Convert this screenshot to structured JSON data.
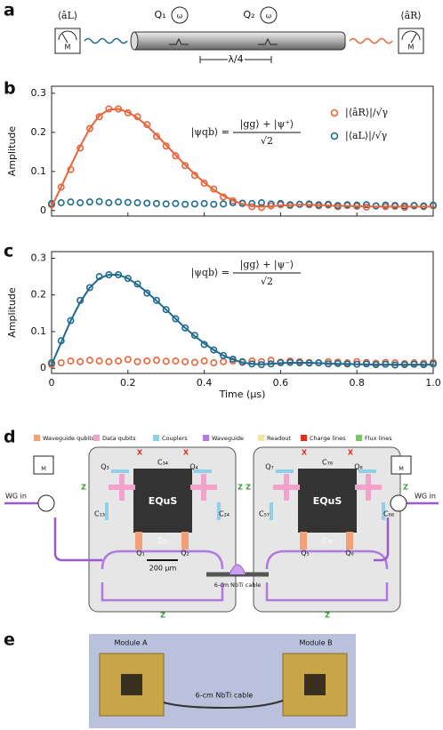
{
  "chart_data": [
    {
      "type": "scatter",
      "panel": "b",
      "ylabel": "Amplitude",
      "x": [
        0,
        0.025,
        0.05,
        0.075,
        0.1,
        0.125,
        0.15,
        0.175,
        0.2,
        0.225,
        0.25,
        0.275,
        0.3,
        0.325,
        0.35,
        0.375,
        0.4,
        0.425,
        0.45,
        0.475,
        0.5,
        0.525,
        0.55,
        0.575,
        0.6,
        0.625,
        0.65,
        0.675,
        0.7,
        0.725,
        0.75,
        0.775,
        0.8,
        0.825,
        0.85,
        0.875,
        0.9,
        0.925,
        0.95,
        0.975,
        1
      ],
      "series": [
        {
          "name": "|⟨âR⟩|/√γ",
          "color": "#e8643a",
          "values": [
            0.015,
            0.06,
            0.105,
            0.16,
            0.21,
            0.24,
            0.26,
            0.26,
            0.25,
            0.24,
            0.22,
            0.19,
            0.165,
            0.14,
            0.115,
            0.09,
            0.07,
            0.055,
            0.035,
            0.025,
            0.018,
            0.01,
            0.008,
            0.012,
            0.015,
            0.013,
            0.016,
            0.015,
            0.012,
            0.014,
            0.01,
            0.013,
            0.011,
            0.009,
            0.012,
            0.01,
            0.011,
            0.008,
            0.012,
            0.01,
            0.012
          ]
        },
        {
          "name": "|⟨aL⟩|/√γ",
          "color": "#1f6b8f",
          "values": [
            0.018,
            0.02,
            0.022,
            0.02,
            0.022,
            0.023,
            0.02,
            0.022,
            0.021,
            0.02,
            0.019,
            0.018,
            0.017,
            0.018,
            0.016,
            0.017,
            0.018,
            0.016,
            0.017,
            0.02,
            0.019,
            0.018,
            0.02,
            0.017,
            0.018,
            0.015,
            0.016,
            0.017,
            0.015,
            0.016,
            0.013,
            0.015,
            0.014,
            0.015,
            0.012,
            0.014,
            0.013,
            0.012,
            0.013,
            0.012,
            0.014
          ]
        }
      ],
      "fit": {
        "color": "#e8643a",
        "values": [
          0.01,
          0.06,
          0.115,
          0.165,
          0.21,
          0.243,
          0.258,
          0.26,
          0.252,
          0.237,
          0.217,
          0.193,
          0.168,
          0.142,
          0.117,
          0.093,
          0.072,
          0.053,
          0.038,
          0.026,
          0.017,
          0.012,
          0.01,
          0.011,
          0.013,
          0.014,
          0.015,
          0.015,
          0.014,
          0.013,
          0.012,
          0.012,
          0.011,
          0.011,
          0.01,
          0.01,
          0.01,
          0.01,
          0.01,
          0.01,
          0.01
        ]
      },
      "equation": {
        "lhs": "|ψqb⟩ =",
        "numerator": "|gg⟩ + |ψ⁺⟩",
        "denominator": "√2"
      },
      "xlim": [
        0,
        1
      ],
      "ylim": [
        -0.014,
        0.318
      ],
      "xticks": [
        0,
        0.2,
        0.4,
        0.6,
        0.8,
        1
      ],
      "show_xtick_labels": false,
      "yticks": [
        0,
        0.1,
        0.2,
        0.3
      ],
      "legend": "upper right"
    },
    {
      "type": "scatter",
      "panel": "c",
      "ylabel": "Amplitude",
      "xlabel": "Time (µs)",
      "x": [
        0,
        0.025,
        0.05,
        0.075,
        0.1,
        0.125,
        0.15,
        0.175,
        0.2,
        0.225,
        0.25,
        0.275,
        0.3,
        0.325,
        0.35,
        0.375,
        0.4,
        0.425,
        0.45,
        0.475,
        0.5,
        0.525,
        0.55,
        0.575,
        0.6,
        0.625,
        0.65,
        0.675,
        0.7,
        0.725,
        0.75,
        0.775,
        0.8,
        0.825,
        0.85,
        0.875,
        0.9,
        0.925,
        0.95,
        0.975,
        1
      ],
      "series": [
        {
          "color": "#e8643a",
          "values": [
            0.01,
            0.015,
            0.02,
            0.018,
            0.022,
            0.02,
            0.018,
            0.02,
            0.024,
            0.018,
            0.02,
            0.022,
            0.019,
            0.02,
            0.018,
            0.016,
            0.02,
            0.015,
            0.018,
            0.02,
            0.016,
            0.02,
            0.018,
            0.022,
            0.017,
            0.02,
            0.018,
            0.016,
            0.015,
            0.018,
            0.017,
            0.015,
            0.018,
            0.016,
            0.014,
            0.016,
            0.015,
            0.013,
            0.015,
            0.014,
            0.016
          ]
        },
        {
          "color": "#1f6b8f",
          "values": [
            0.015,
            0.075,
            0.13,
            0.185,
            0.22,
            0.25,
            0.255,
            0.255,
            0.245,
            0.23,
            0.205,
            0.185,
            0.16,
            0.135,
            0.11,
            0.09,
            0.065,
            0.05,
            0.035,
            0.025,
            0.018,
            0.012,
            0.01,
            0.012,
            0.015,
            0.016,
            0.015,
            0.014,
            0.015,
            0.012,
            0.013,
            0.012,
            0.011,
            0.012,
            0.01,
            0.011,
            0.009,
            0.01,
            0.011,
            0.01,
            0.012
          ]
        }
      ],
      "fit": {
        "color": "#1f6b8f",
        "values": [
          0.01,
          0.07,
          0.13,
          0.18,
          0.22,
          0.245,
          0.255,
          0.255,
          0.245,
          0.228,
          0.207,
          0.184,
          0.16,
          0.135,
          0.11,
          0.088,
          0.068,
          0.05,
          0.035,
          0.024,
          0.016,
          0.012,
          0.011,
          0.012,
          0.014,
          0.015,
          0.015,
          0.015,
          0.014,
          0.013,
          0.012,
          0.012,
          0.011,
          0.011,
          0.01,
          0.01,
          0.01,
          0.01,
          0.01,
          0.01,
          0.01
        ]
      },
      "equation": {
        "lhs": "|ψqb⟩ =",
        "numerator": "|gg⟩ + |ψ⁻⟩",
        "denominator": "√2"
      },
      "xlim": [
        0,
        1
      ],
      "ylim": [
        -0.014,
        0.318
      ],
      "xticks": [
        0,
        0.2,
        0.4,
        0.6,
        0.8,
        {
          "value": 1,
          "label": "1.0"
        }
      ],
      "show_xtick_labels": true,
      "yticks": [
        0,
        0.1,
        0.2,
        0.3
      ]
    }
  ],
  "panel_a": {
    "label": "a",
    "left_operator": "⟨âL⟩",
    "right_operator": "⟨âR⟩",
    "meter": "M",
    "qubits": [
      "Q₁",
      "Q₂"
    ],
    "qubit_symbol": "ω",
    "distance": "λ/4"
  },
  "panel_d": {
    "label": "d",
    "legend": [
      {
        "name": "Waveguide qubits",
        "color": "#f2a176"
      },
      {
        "name": "Data qubits",
        "color": "#f3a3cb"
      },
      {
        "name": "Couplers",
        "color": "#8fd0e8"
      },
      {
        "name": "Waveguide",
        "color": "#b07be0"
      },
      {
        "name": "Readout",
        "color": "#efe6a0"
      },
      {
        "name": "Charge lines",
        "color": "#e03020"
      },
      {
        "name": "Flux lines",
        "color": "#7cc46c"
      }
    ],
    "module_a": {
      "qubits": [
        "Q₃",
        "Q₄",
        "Q₁",
        "Q₂"
      ],
      "couplers": [
        "C₃₄",
        "C₁₃",
        "C₂₄",
        "C₁₂"
      ]
    },
    "module_b": {
      "qubits": [
        "Q₇",
        "Q₈",
        "Q₅",
        "Q₆"
      ],
      "couplers": [
        "C₇₈",
        "C₅₇",
        "C₆₈",
        "C₅₆"
      ]
    },
    "logo": "EQuS",
    "scale_bar": "200 µm",
    "cable": "6-cm NbTi cable",
    "input": "WG in",
    "meter": "M",
    "charge_mark": "X",
    "flux_mark": "Z"
  },
  "panel_e": {
    "label": "e",
    "module_a": "Module A",
    "module_b": "Module B",
    "cable": "6-cm NbTi cable"
  }
}
